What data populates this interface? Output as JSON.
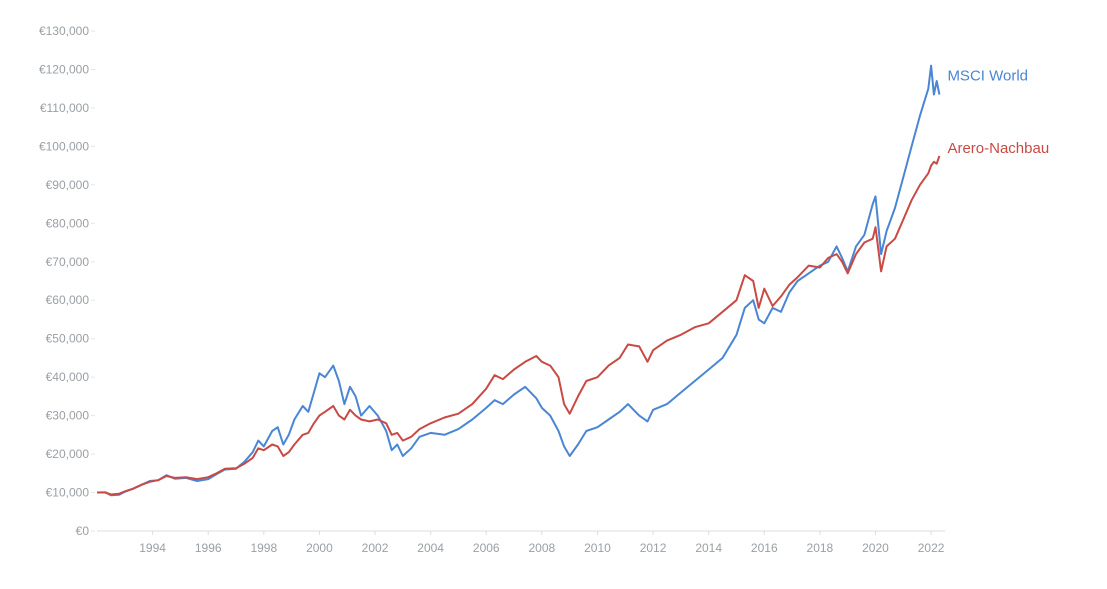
{
  "chart_data": {
    "type": "line",
    "title": "",
    "xlabel": "",
    "ylabel": "",
    "xlim": [
      1992.0,
      2022.5
    ],
    "ylim": [
      0,
      130000
    ],
    "grid": false,
    "legend": "inline-right",
    "y_ticks": [
      0,
      10000,
      20000,
      30000,
      40000,
      50000,
      60000,
      70000,
      80000,
      90000,
      100000,
      110000,
      120000,
      130000
    ],
    "y_tick_labels": [
      "€0",
      "€10,000",
      "€20,000",
      "€30,000",
      "€40,000",
      "€50,000",
      "€60,000",
      "€70,000",
      "€80,000",
      "€90,000",
      "€100,000",
      "€110,000",
      "€120,000",
      "€130,000"
    ],
    "x_ticks": [
      1994,
      1996,
      1998,
      2000,
      2002,
      2004,
      2006,
      2008,
      2010,
      2012,
      2014,
      2016,
      2018,
      2020,
      2022
    ],
    "x_tick_labels": [
      "1994",
      "1996",
      "1998",
      "2000",
      "2002",
      "2004",
      "2006",
      "2008",
      "2010",
      "2012",
      "2014",
      "2016",
      "2018",
      "2020",
      "2022"
    ],
    "series": [
      {
        "name": "MSCI World",
        "color": "#4a86d4",
        "points": [
          [
            1992.0,
            10000
          ],
          [
            1992.3,
            10100
          ],
          [
            1992.5,
            9300
          ],
          [
            1992.8,
            9400
          ],
          [
            1993.0,
            10200
          ],
          [
            1993.3,
            11000
          ],
          [
            1993.6,
            12000
          ],
          [
            1993.9,
            13000
          ],
          [
            1994.2,
            13200
          ],
          [
            1994.5,
            14500
          ],
          [
            1994.8,
            13600
          ],
          [
            1995.2,
            13800
          ],
          [
            1995.6,
            13000
          ],
          [
            1996.0,
            13500
          ],
          [
            1996.3,
            14800
          ],
          [
            1996.6,
            16000
          ],
          [
            1997.0,
            16200
          ],
          [
            1997.3,
            18000
          ],
          [
            1997.6,
            20500
          ],
          [
            1997.8,
            23500
          ],
          [
            1998.0,
            22000
          ],
          [
            1998.3,
            26000
          ],
          [
            1998.5,
            27000
          ],
          [
            1998.7,
            22500
          ],
          [
            1998.9,
            25000
          ],
          [
            1999.1,
            29000
          ],
          [
            1999.4,
            32500
          ],
          [
            1999.6,
            31000
          ],
          [
            1999.8,
            36000
          ],
          [
            2000.0,
            41000
          ],
          [
            2000.2,
            40000
          ],
          [
            2000.5,
            43000
          ],
          [
            2000.7,
            39000
          ],
          [
            2000.9,
            33000
          ],
          [
            2001.1,
            37500
          ],
          [
            2001.3,
            35000
          ],
          [
            2001.5,
            30000
          ],
          [
            2001.8,
            32500
          ],
          [
            2002.1,
            30000
          ],
          [
            2002.4,
            26000
          ],
          [
            2002.6,
            21000
          ],
          [
            2002.8,
            22500
          ],
          [
            2003.0,
            19500
          ],
          [
            2003.3,
            21500
          ],
          [
            2003.6,
            24500
          ],
          [
            2004.0,
            25500
          ],
          [
            2004.5,
            25000
          ],
          [
            2005.0,
            26500
          ],
          [
            2005.5,
            29000
          ],
          [
            2006.0,
            32000
          ],
          [
            2006.3,
            34000
          ],
          [
            2006.6,
            33000
          ],
          [
            2007.0,
            35500
          ],
          [
            2007.4,
            37500
          ],
          [
            2007.8,
            34500
          ],
          [
            2008.0,
            32000
          ],
          [
            2008.3,
            30000
          ],
          [
            2008.6,
            26000
          ],
          [
            2008.8,
            22000
          ],
          [
            2009.0,
            19500
          ],
          [
            2009.3,
            22500
          ],
          [
            2009.6,
            26000
          ],
          [
            2010.0,
            27000
          ],
          [
            2010.4,
            29000
          ],
          [
            2010.8,
            31000
          ],
          [
            2011.1,
            33000
          ],
          [
            2011.5,
            30000
          ],
          [
            2011.8,
            28500
          ],
          [
            2012.0,
            31500
          ],
          [
            2012.5,
            33000
          ],
          [
            2013.0,
            36000
          ],
          [
            2013.5,
            39000
          ],
          [
            2014.0,
            42000
          ],
          [
            2014.5,
            45000
          ],
          [
            2015.0,
            51000
          ],
          [
            2015.3,
            58000
          ],
          [
            2015.6,
            60000
          ],
          [
            2015.8,
            55000
          ],
          [
            2016.0,
            54000
          ],
          [
            2016.3,
            58000
          ],
          [
            2016.6,
            57000
          ],
          [
            2016.9,
            62000
          ],
          [
            2017.2,
            65000
          ],
          [
            2017.6,
            67000
          ],
          [
            2018.0,
            69000
          ],
          [
            2018.3,
            70000
          ],
          [
            2018.6,
            74000
          ],
          [
            2018.8,
            71000
          ],
          [
            2019.0,
            67500
          ],
          [
            2019.3,
            74000
          ],
          [
            2019.6,
            77000
          ],
          [
            2019.9,
            85000
          ],
          [
            2020.0,
            87000
          ],
          [
            2020.2,
            72000
          ],
          [
            2020.4,
            78000
          ],
          [
            2020.7,
            84000
          ],
          [
            2021.0,
            92000
          ],
          [
            2021.3,
            100000
          ],
          [
            2021.6,
            108000
          ],
          [
            2021.9,
            115000
          ],
          [
            2022.0,
            121000
          ],
          [
            2022.1,
            113500
          ],
          [
            2022.2,
            117000
          ],
          [
            2022.3,
            113500
          ]
        ]
      },
      {
        "name": "Arero-Nachbau",
        "color": "#c94a45",
        "points": [
          [
            1992.0,
            10000
          ],
          [
            1992.3,
            10000
          ],
          [
            1992.5,
            9500
          ],
          [
            1992.8,
            9700
          ],
          [
            1993.0,
            10300
          ],
          [
            1993.3,
            11000
          ],
          [
            1993.6,
            12000
          ],
          [
            1993.9,
            12800
          ],
          [
            1994.2,
            13200
          ],
          [
            1994.5,
            14300
          ],
          [
            1994.8,
            13800
          ],
          [
            1995.2,
            14000
          ],
          [
            1995.6,
            13500
          ],
          [
            1996.0,
            14000
          ],
          [
            1996.3,
            15000
          ],
          [
            1996.6,
            16200
          ],
          [
            1997.0,
            16300
          ],
          [
            1997.3,
            17500
          ],
          [
            1997.6,
            19000
          ],
          [
            1997.8,
            21500
          ],
          [
            1998.0,
            21000
          ],
          [
            1998.3,
            22500
          ],
          [
            1998.5,
            22000
          ],
          [
            1998.7,
            19500
          ],
          [
            1998.9,
            20500
          ],
          [
            1999.1,
            22500
          ],
          [
            1999.4,
            25000
          ],
          [
            1999.6,
            25500
          ],
          [
            1999.8,
            28000
          ],
          [
            2000.0,
            30000
          ],
          [
            2000.2,
            31000
          ],
          [
            2000.5,
            32500
          ],
          [
            2000.7,
            30000
          ],
          [
            2000.9,
            29000
          ],
          [
            2001.1,
            31500
          ],
          [
            2001.3,
            30000
          ],
          [
            2001.5,
            29000
          ],
          [
            2001.8,
            28500
          ],
          [
            2002.1,
            29000
          ],
          [
            2002.4,
            28000
          ],
          [
            2002.6,
            25000
          ],
          [
            2002.8,
            25500
          ],
          [
            2003.0,
            23500
          ],
          [
            2003.3,
            24500
          ],
          [
            2003.6,
            26500
          ],
          [
            2004.0,
            28000
          ],
          [
            2004.5,
            29500
          ],
          [
            2005.0,
            30500
          ],
          [
            2005.5,
            33000
          ],
          [
            2006.0,
            37000
          ],
          [
            2006.3,
            40500
          ],
          [
            2006.6,
            39500
          ],
          [
            2007.0,
            42000
          ],
          [
            2007.4,
            44000
          ],
          [
            2007.8,
            45500
          ],
          [
            2008.0,
            44000
          ],
          [
            2008.3,
            43000
          ],
          [
            2008.6,
            40000
          ],
          [
            2008.8,
            33000
          ],
          [
            2009.0,
            30500
          ],
          [
            2009.3,
            35000
          ],
          [
            2009.6,
            39000
          ],
          [
            2010.0,
            40000
          ],
          [
            2010.4,
            43000
          ],
          [
            2010.8,
            45000
          ],
          [
            2011.1,
            48500
          ],
          [
            2011.5,
            48000
          ],
          [
            2011.8,
            44000
          ],
          [
            2012.0,
            47000
          ],
          [
            2012.5,
            49500
          ],
          [
            2013.0,
            51000
          ],
          [
            2013.5,
            53000
          ],
          [
            2014.0,
            54000
          ],
          [
            2014.5,
            57000
          ],
          [
            2015.0,
            60000
          ],
          [
            2015.3,
            66500
          ],
          [
            2015.6,
            65000
          ],
          [
            2015.8,
            58000
          ],
          [
            2016.0,
            63000
          ],
          [
            2016.3,
            58500
          ],
          [
            2016.6,
            61000
          ],
          [
            2016.9,
            64000
          ],
          [
            2017.2,
            66000
          ],
          [
            2017.6,
            69000
          ],
          [
            2018.0,
            68500
          ],
          [
            2018.3,
            71000
          ],
          [
            2018.6,
            72000
          ],
          [
            2018.8,
            70000
          ],
          [
            2019.0,
            67000
          ],
          [
            2019.3,
            72000
          ],
          [
            2019.6,
            75000
          ],
          [
            2019.9,
            76000
          ],
          [
            2020.0,
            79000
          ],
          [
            2020.2,
            67500
          ],
          [
            2020.4,
            74000
          ],
          [
            2020.7,
            76000
          ],
          [
            2021.0,
            81000
          ],
          [
            2021.3,
            86000
          ],
          [
            2021.6,
            90000
          ],
          [
            2021.9,
            93000
          ],
          [
            2022.0,
            95000
          ],
          [
            2022.1,
            96000
          ],
          [
            2022.2,
            95500
          ],
          [
            2022.3,
            97500
          ]
        ]
      }
    ]
  }
}
